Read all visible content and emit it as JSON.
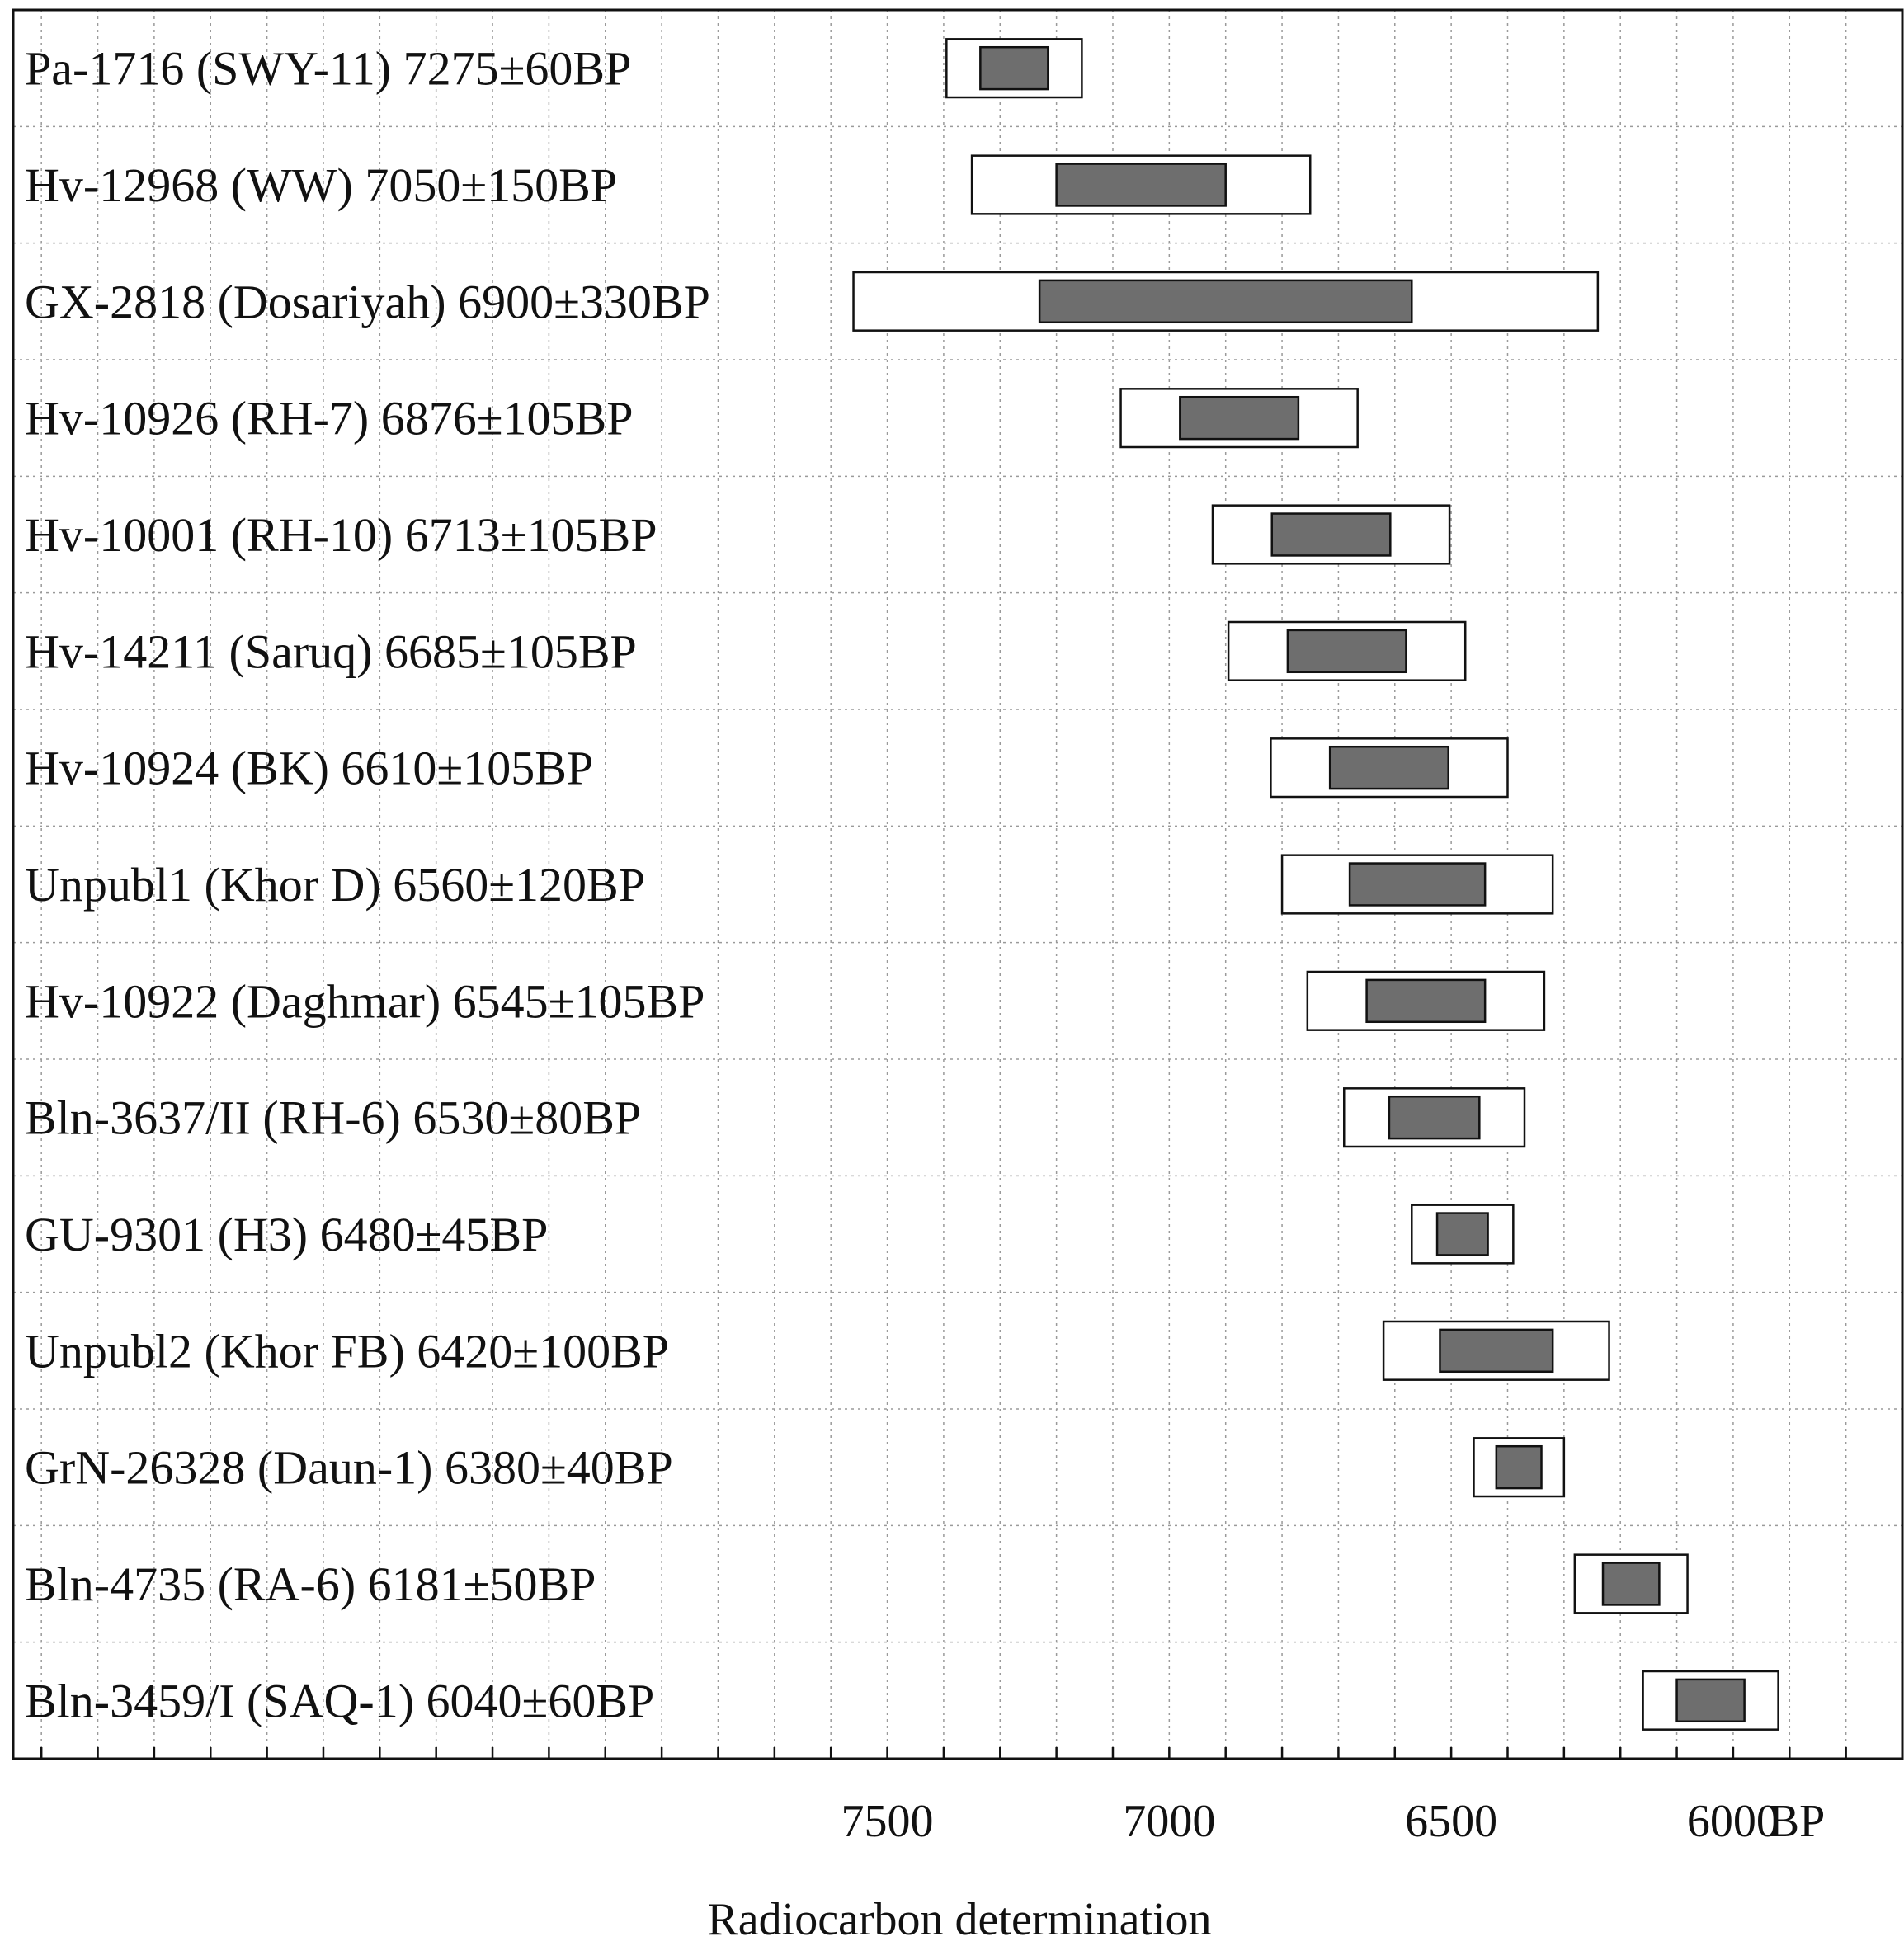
{
  "chart_data": {
    "type": "range-bar",
    "xlabel": "Radiocarbon determination",
    "x_unit": "BP",
    "x_reversed": true,
    "xlim": [
      5700,
      9050
    ],
    "x_ticks": [
      7500,
      7000,
      6500,
      6000
    ],
    "grid": true,
    "rows": [
      {
        "label": "Pa-1716 (SWY-11)  7275±60BP",
        "bp": 7275,
        "sd": 60
      },
      {
        "label": "Hv-12968 (WW)  7050±150BP",
        "bp": 7050,
        "sd": 150
      },
      {
        "label": "GX-2818 (Dosariyah)  6900±330BP",
        "bp": 6900,
        "sd": 330
      },
      {
        "label": "Hv-10926 (RH-7)  6876±105BP",
        "bp": 6876,
        "sd": 105
      },
      {
        "label": "Hv-10001 (RH-10)  6713±105BP",
        "bp": 6713,
        "sd": 105
      },
      {
        "label": "Hv-14211 (Saruq)  6685±105BP",
        "bp": 6685,
        "sd": 105
      },
      {
        "label": "Hv-10924 (BK)  6610±105BP",
        "bp": 6610,
        "sd": 105
      },
      {
        "label": "Unpubl1 (Khor D)  6560±120BP",
        "bp": 6560,
        "sd": 120
      },
      {
        "label": "Hv-10922 (Daghmar)  6545±105BP",
        "bp": 6545,
        "sd": 105
      },
      {
        "label": "Bln-3637/II (RH-6)  6530±80BP",
        "bp": 6530,
        "sd": 80
      },
      {
        "label": "GU-9301 (H3)  6480±45BP",
        "bp": 6480,
        "sd": 45
      },
      {
        "label": "Unpubl2 (Khor FB)  6420±100BP",
        "bp": 6420,
        "sd": 100
      },
      {
        "label": "GrN-26328 (Daun-1)  6380±40BP",
        "bp": 6380,
        "sd": 40
      },
      {
        "label": "Bln-4735 (RA-6)  6181±50BP",
        "bp": 6181,
        "sd": 50
      },
      {
        "label": "Bln-3459/I (SAQ-1)  6040±60BP",
        "bp": 6040,
        "sd": 60
      }
    ]
  }
}
